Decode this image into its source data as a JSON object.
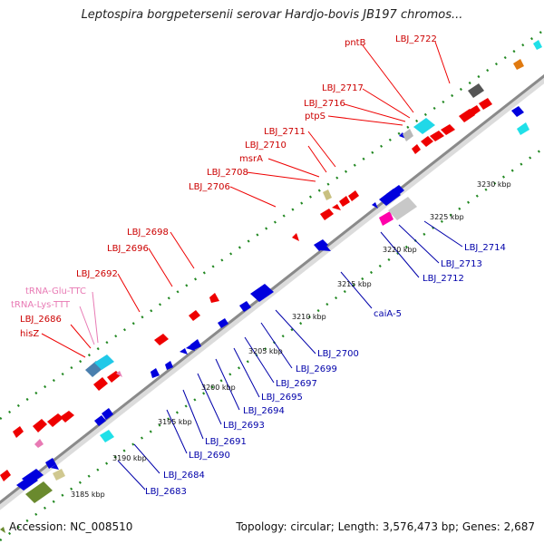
{
  "title": "Leptospira borgpetersenii serovar Hardjo-bovis JB197 chromos...",
  "footer": {
    "accession": "Accession: NC_008510",
    "summary": "Topology: circular; Length: 3,576,473 bp; Genes: 2,687"
  },
  "colors": {
    "forward_gene": "#ee0000",
    "reverse_gene": "#0000dd",
    "trna": "#e87ab4",
    "backbone": "#8a8a8a",
    "tick_dots": "#228822"
  },
  "scale_labels": [
    "3185 kbp",
    "3190 kbp",
    "3195 kbp",
    "3200 kbp",
    "3205 kbp",
    "3210 kbp",
    "3215 kbp",
    "3220 kbp",
    "3225 kbp",
    "3230 kbp"
  ],
  "top_labels": [
    {
      "text": "LBJ_2722",
      "kind": "red"
    },
    {
      "text": "pntB",
      "kind": "red"
    },
    {
      "text": "LBJ_2717",
      "kind": "red"
    },
    {
      "text": "LBJ_2716",
      "kind": "red"
    },
    {
      "text": "ptpS",
      "kind": "red"
    },
    {
      "text": "LBJ_2711",
      "kind": "red"
    },
    {
      "text": "LBJ_2710",
      "kind": "red"
    },
    {
      "text": "msrA",
      "kind": "red"
    },
    {
      "text": "LBJ_2708",
      "kind": "red"
    },
    {
      "text": "LBJ_2706",
      "kind": "red"
    },
    {
      "text": "LBJ_2698",
      "kind": "red"
    },
    {
      "text": "LBJ_2696",
      "kind": "red"
    },
    {
      "text": "LBJ_2692",
      "kind": "red"
    },
    {
      "text": "tRNA-Glu-TTC",
      "kind": "pink"
    },
    {
      "text": "tRNA-Lys-TTT",
      "kind": "pink"
    },
    {
      "text": "LBJ_2686",
      "kind": "red"
    },
    {
      "text": "hisZ",
      "kind": "red"
    }
  ],
  "bottom_labels": [
    {
      "text": "LBJ_2714"
    },
    {
      "text": "LBJ_2713"
    },
    {
      "text": "LBJ_2712"
    },
    {
      "text": "caiA-5"
    },
    {
      "text": "LBJ_2700"
    },
    {
      "text": "LBJ_2699"
    },
    {
      "text": "LBJ_2697"
    },
    {
      "text": "LBJ_2695"
    },
    {
      "text": "LBJ_2694"
    },
    {
      "text": "LBJ_2693"
    },
    {
      "text": "LBJ_2691"
    },
    {
      "text": "LBJ_2690"
    },
    {
      "text": "LBJ_2684"
    },
    {
      "text": "LBJ_2683"
    }
  ]
}
